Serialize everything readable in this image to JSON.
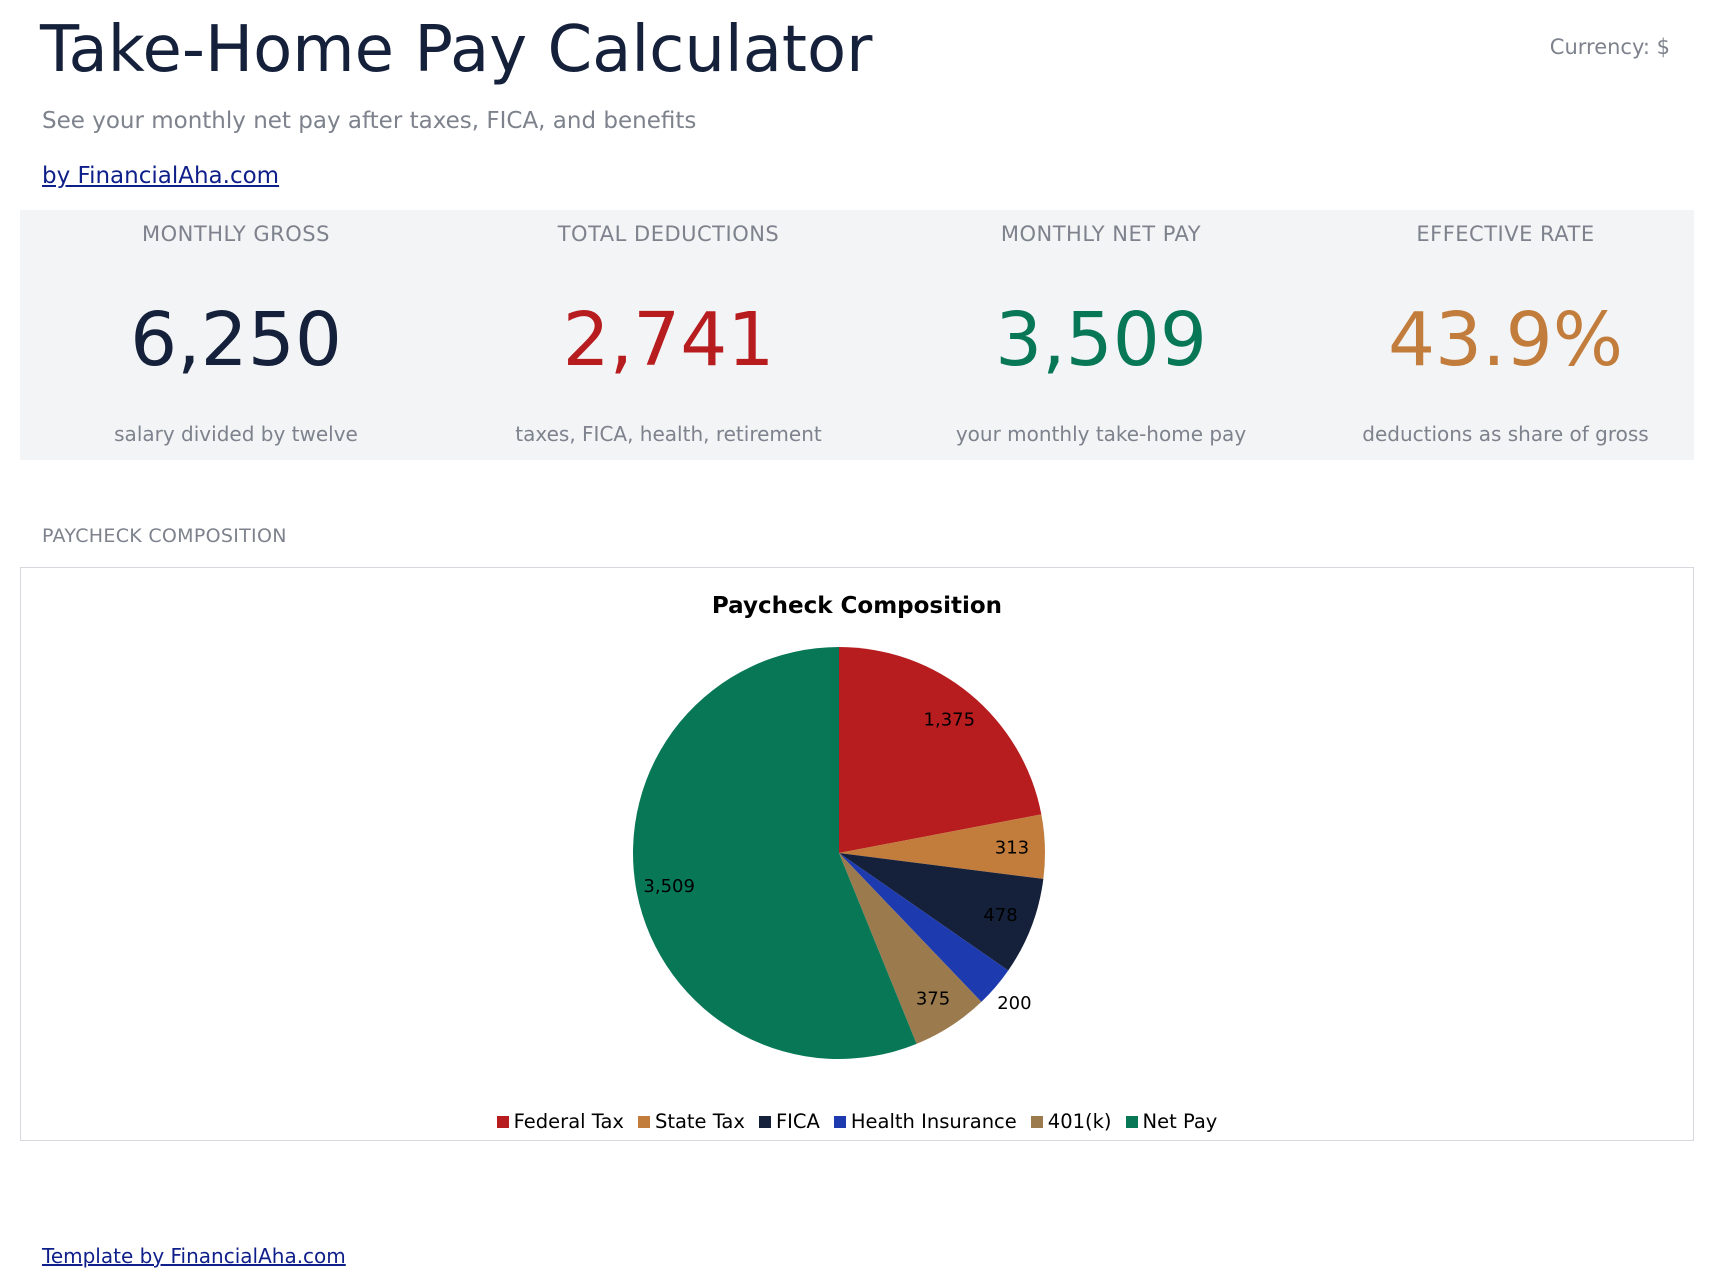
{
  "header": {
    "title": "Take-Home Pay Calculator",
    "currency": "Currency: $",
    "subtitle": "See your monthly net pay after taxes, FICA, and benefits",
    "brand_link": "by FinancialAha.com"
  },
  "kpis": [
    {
      "label": "MONTHLY GROSS",
      "value": "6,250",
      "note": "salary divided by twelve",
      "color": "#15203a"
    },
    {
      "label": "TOTAL DEDUCTIONS",
      "value": "2,741",
      "note": "taxes, FICA, health, retirement",
      "color": "#b71c1e"
    },
    {
      "label": "MONTHLY NET PAY",
      "value": "3,509",
      "note": "your monthly take-home pay",
      "color": "#077755"
    },
    {
      "label": "EFFECTIVE RATE",
      "value": "43.9%",
      "note": "deductions as share of gross",
      "color": "#c27d3c"
    }
  ],
  "section": {
    "label": "PAYCHECK COMPOSITION"
  },
  "chart_data": {
    "type": "pie",
    "title": "Paycheck Composition",
    "legend_position": "bottom",
    "start": "top, clockwise",
    "slices": [
      {
        "name": "Federal Tax",
        "value": 1375,
        "label": "1,375",
        "color": "#b71c1e"
      },
      {
        "name": "State Tax",
        "value": 313,
        "label": "313",
        "color": "#c27d3c"
      },
      {
        "name": "FICA",
        "value": 478,
        "label": "478",
        "color": "#15203a"
      },
      {
        "name": "Health Insurance",
        "value": 200,
        "label": "200",
        "color": "#1e3aaf"
      },
      {
        "name": "401(k)",
        "value": 375,
        "label": "375",
        "color": "#9b7a4e"
      },
      {
        "name": "Net Pay",
        "value": 3509,
        "label": "3,509",
        "color": "#077755"
      }
    ]
  },
  "footer": {
    "link": "Template by FinancialAha.com"
  }
}
